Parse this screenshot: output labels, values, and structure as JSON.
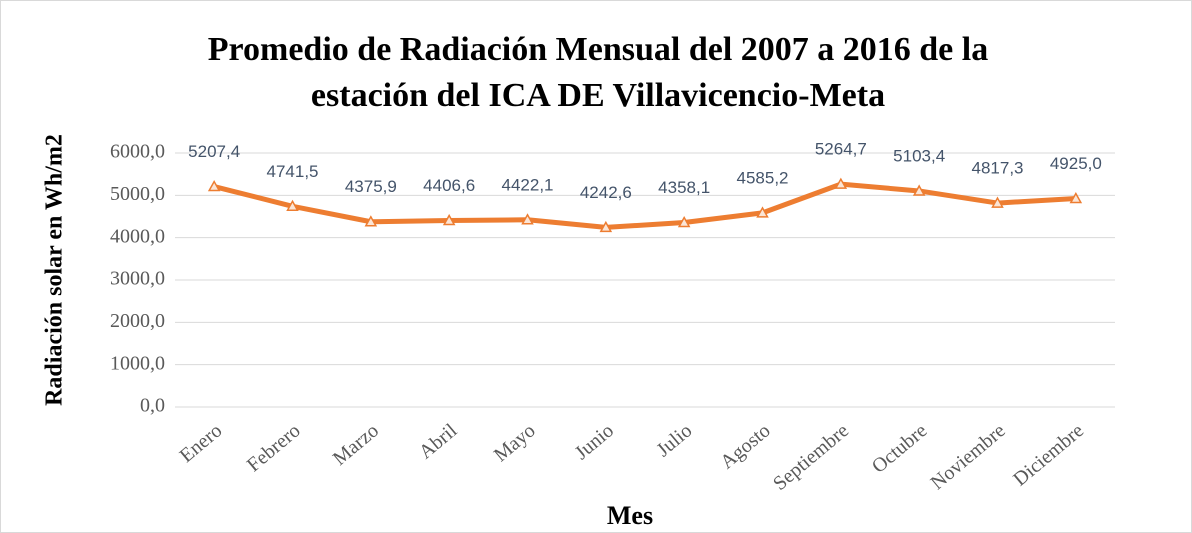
{
  "chart_data": {
    "type": "line",
    "title": [
      "Promedio de Radiación Mensual del 2007 a 2016 de la",
      "estación del ICA DE Villavicencio-Meta"
    ],
    "x_label": "Mes",
    "y_label": "Radiación solar en Wh/m2",
    "categories": [
      "Enero",
      "Febrero",
      "Marzo",
      "Abril",
      "Mayo",
      "Junio",
      "Julio",
      "Agosto",
      "Septiembre",
      "Octubre",
      "Noviembre",
      "Diciembre"
    ],
    "values": [
      5207.4,
      4741.5,
      4375.9,
      4406.6,
      4422.1,
      4242.6,
      4358.1,
      4585.2,
      5264.7,
      5103.4,
      4817.3,
      4925.0
    ],
    "value_labels": [
      "5207,4",
      "4741,5",
      "4375,9",
      "4406,6",
      "4422,1",
      "4242,6",
      "4358,1",
      "4585,2",
      "5264,7",
      "5103,4",
      "4817,3",
      "4925,0"
    ],
    "color": "#ed7d31",
    "ylim": [
      0,
      6000
    ],
    "yticks": [
      {
        "value": 0,
        "label": "0,0"
      },
      {
        "value": 1000,
        "label": "1000,0"
      },
      {
        "value": 2000,
        "label": "2000,0"
      },
      {
        "value": 3000,
        "label": "3000,0"
      },
      {
        "value": 4000,
        "label": "4000,0"
      },
      {
        "value": 5000,
        "label": "5000,0"
      },
      {
        "value": 6000,
        "label": "6000,0"
      }
    ],
    "grid": true
  }
}
